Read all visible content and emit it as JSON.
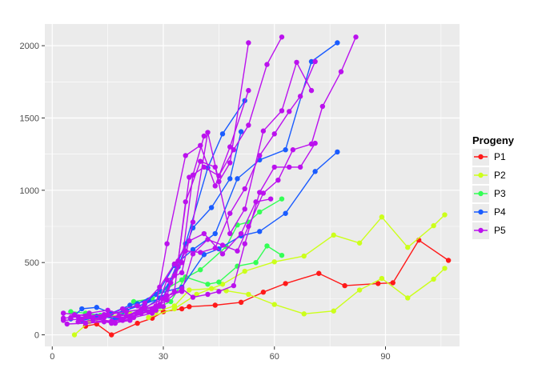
{
  "chart_data": {
    "type": "line",
    "title": "",
    "xlabel": "",
    "ylabel": "",
    "xlim": [
      -2,
      110
    ],
    "ylim": [
      -80,
      2150
    ],
    "x_ticks": [
      0,
      30,
      60,
      90
    ],
    "y_ticks": [
      0,
      500,
      1000,
      1500,
      2000
    ],
    "grid": true,
    "legend": {
      "title": "Progeny",
      "placement": "right",
      "entries": [
        {
          "label": "P1",
          "color": "#ff1a1a"
        },
        {
          "label": "P2",
          "color": "#ccff1a"
        },
        {
          "label": "P3",
          "color": "#33ff55"
        },
        {
          "label": "P4",
          "color": "#1a5cff"
        },
        {
          "label": "P5",
          "color": "#bb11ee"
        }
      ]
    },
    "series": [
      {
        "group": "P1",
        "color": "#ff1a1a",
        "x": [
          9,
          12,
          16,
          23,
          27,
          30,
          35,
          37,
          44,
          51,
          57,
          63,
          72,
          79,
          88,
          92,
          99,
          107
        ],
        "y": [
          60,
          75,
          0,
          80,
          115,
          160,
          180,
          195,
          205,
          225,
          295,
          355,
          425,
          340,
          355,
          360,
          655,
          515
        ]
      },
      {
        "group": "P2",
        "color": "#ccff1a",
        "x": [
          6,
          10,
          16,
          21,
          28,
          33,
          37,
          43,
          47,
          53,
          60,
          68,
          76,
          83,
          89,
          96,
          103,
          106
        ],
        "y": [
          0,
          90,
          130,
          145,
          160,
          200,
          310,
          320,
          305,
          280,
          210,
          145,
          165,
          310,
          390,
          255,
          385,
          460
        ]
      },
      {
        "group": "P2",
        "color": "#ccff1a",
        "x": [
          26,
          33,
          39,
          46,
          52,
          60,
          68,
          76,
          83,
          89,
          96,
          103,
          106
        ],
        "y": [
          120,
          180,
          280,
          350,
          440,
          505,
          545,
          690,
          635,
          815,
          605,
          755,
          830
        ]
      },
      {
        "group": "P3",
        "color": "#33ff55",
        "x": [
          5,
          9,
          13,
          19,
          24,
          29,
          32,
          36,
          42,
          45,
          50,
          55,
          58,
          62
        ],
        "y": [
          160,
          150,
          135,
          155,
          175,
          195,
          230,
          400,
          350,
          365,
          475,
          500,
          615,
          550
        ]
      },
      {
        "group": "P3",
        "color": "#33ff55",
        "x": [
          22,
          27,
          31,
          35,
          40,
          47,
          50,
          53,
          56,
          62
        ],
        "y": [
          230,
          250,
          320,
          380,
          450,
          610,
          760,
          780,
          850,
          940
        ]
      },
      {
        "group": "P4",
        "color": "#1a5cff",
        "x": [
          5,
          8,
          12,
          16,
          21,
          26,
          29,
          33,
          38,
          44,
          50,
          56,
          63,
          70,
          77
        ],
        "y": [
          110,
          180,
          190,
          150,
          205,
          240,
          310,
          480,
          590,
          700,
          1080,
          1210,
          1280,
          1890,
          2020
        ]
      },
      {
        "group": "P4",
        "color": "#1a5cff",
        "x": [
          8,
          14,
          20,
          25,
          30,
          36,
          42,
          46,
          52
        ],
        "y": [
          100,
          130,
          170,
          215,
          260,
          630,
          1155,
          1390,
          1620
        ]
      },
      {
        "group": "P4",
        "color": "#1a5cff",
        "x": [
          12,
          18,
          24,
          29,
          34,
          38,
          43,
          48,
          51
        ],
        "y": [
          130,
          110,
          165,
          255,
          470,
          740,
          880,
          1080,
          1405
        ]
      },
      {
        "group": "P4",
        "color": "#1a5cff",
        "x": [
          17,
          23,
          28,
          35,
          41,
          45,
          51,
          56,
          63,
          71,
          77
        ],
        "y": [
          110,
          215,
          280,
          330,
          555,
          595,
          685,
          715,
          840,
          1130,
          1265
        ]
      },
      {
        "group": "P5",
        "color": "#bb11ee",
        "x": [
          3,
          6,
          10,
          15,
          20,
          25,
          29,
          32,
          35,
          38,
          41
        ],
        "y": [
          150,
          140,
          130,
          140,
          160,
          180,
          210,
          360,
          500,
          1105,
          1375
        ]
      },
      {
        "group": "P5",
        "color": "#bb11ee",
        "x": [
          3,
          8,
          13,
          18,
          23,
          28,
          31,
          35,
          38,
          42,
          45,
          48,
          53
        ],
        "y": [
          100,
          110,
          120,
          130,
          150,
          170,
          380,
          430,
          780,
          1400,
          1060,
          1190,
          2020
        ]
      },
      {
        "group": "P5",
        "color": "#bb11ee",
        "x": [
          4,
          9,
          14,
          19,
          24,
          28,
          31,
          36,
          40,
          44,
          48,
          53
        ],
        "y": [
          75,
          80,
          90,
          100,
          175,
          200,
          630,
          1240,
          1310,
          1030,
          1300,
          1690
        ]
      },
      {
        "group": "P5",
        "color": "#bb11ee",
        "x": [
          3,
          7,
          11,
          16,
          21,
          26,
          30,
          34,
          37,
          41,
          45,
          49,
          53,
          58,
          62
        ],
        "y": [
          115,
          125,
          110,
          95,
          120,
          160,
          195,
          510,
          1090,
          1160,
          1100,
          1280,
          1450,
          1870,
          2060
        ]
      },
      {
        "group": "P5",
        "color": "#bb11ee",
        "x": [
          5,
          10,
          15,
          20,
          25,
          30,
          33,
          36,
          40,
          44,
          48,
          52,
          57,
          62,
          66,
          70
        ],
        "y": [
          120,
          150,
          170,
          130,
          190,
          250,
          300,
          920,
          1200,
          1160,
          700,
          870,
          1410,
          1550,
          1885,
          1690
        ]
      },
      {
        "group": "P5",
        "color": "#bb11ee",
        "x": [
          7,
          11,
          17,
          22,
          27,
          31,
          35,
          38,
          42,
          46,
          50,
          53,
          57,
          61,
          65,
          70,
          73,
          78,
          82
        ],
        "y": [
          90,
          100,
          80,
          120,
          150,
          270,
          300,
          560,
          660,
          620,
          580,
          750,
          980,
          1070,
          1280,
          1320,
          1580,
          1820,
          2060
        ]
      },
      {
        "group": "P5",
        "color": "#bb11ee",
        "x": [
          9,
          14,
          19,
          24,
          29,
          33,
          36,
          40,
          44,
          48,
          52,
          56,
          60,
          64,
          67,
          71
        ],
        "y": [
          130,
          140,
          110,
          150,
          200,
          410,
          580,
          570,
          600,
          840,
          1010,
          1240,
          1390,
          1545,
          1650,
          1890
        ]
      },
      {
        "group": "P5",
        "color": "#bb11ee",
        "x": [
          14,
          19,
          23,
          27,
          31,
          35,
          38,
          42,
          45,
          49,
          52,
          56,
          60,
          64,
          67,
          71
        ],
        "y": [
          120,
          180,
          200,
          180,
          240,
          320,
          260,
          280,
          300,
          340,
          630,
          985,
          1160,
          1160,
          1160,
          1325
        ]
      },
      {
        "group": "P5",
        "color": "#bb11ee",
        "x": [
          11,
          16,
          21,
          25,
          29,
          33,
          37,
          41,
          46,
          51,
          55,
          59
        ],
        "y": [
          120,
          80,
          100,
          220,
          330,
          490,
          650,
          700,
          560,
          700,
          920,
          940
        ]
      }
    ]
  }
}
